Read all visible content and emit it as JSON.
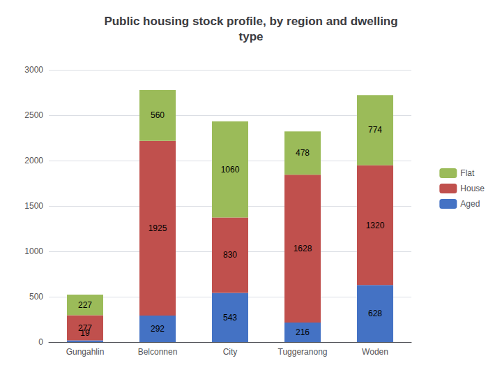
{
  "chart_data": {
    "type": "bar",
    "title": "Public housing stock profile, by region and dwelling\ntype",
    "categories": [
      "Gungahlin",
      "Belconnen",
      "City",
      "Tuggeranong",
      "Woden"
    ],
    "series": [
      {
        "name": "Aged",
        "color": "#4472C4",
        "values": [
          19,
          292,
          543,
          216,
          628
        ]
      },
      {
        "name": "House",
        "color": "#C0504D",
        "values": [
          277,
          1925,
          830,
          1628,
          1320
        ]
      },
      {
        "name": "Flat",
        "color": "#9BBB59",
        "values": [
          227,
          560,
          1060,
          478,
          774
        ]
      }
    ],
    "stacked": true,
    "data_labels": true,
    "ylim": [
      0,
      3000
    ],
    "yticks": [
      0,
      500,
      1000,
      1500,
      2000,
      2500,
      3000
    ],
    "grid": true,
    "legend": "right"
  }
}
